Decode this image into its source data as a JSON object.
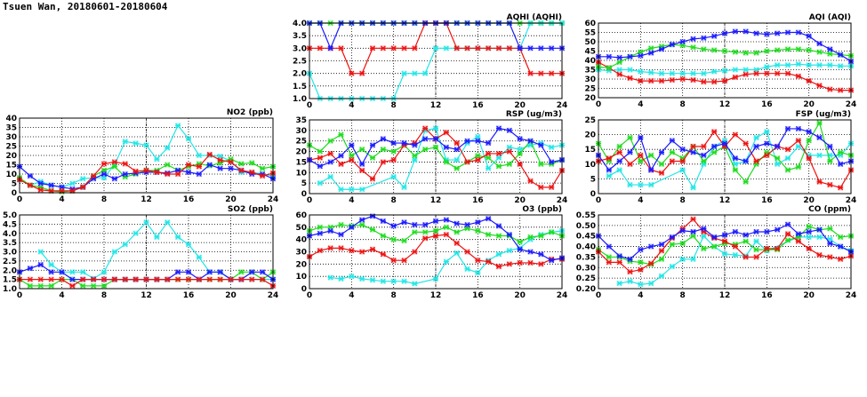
{
  "page_title": "Tsuen Wan, 20180601-20180604",
  "colors": {
    "blue": "#1a1aff",
    "green": "#1edc1e",
    "red": "#ee1111",
    "cyan": "#22e6e6"
  },
  "chart_data": [
    {
      "id": "aqhi",
      "type": "line",
      "title": "AQHI (AQHI)",
      "xlim": [
        0,
        24
      ],
      "ylim": [
        1,
        4
      ],
      "xticks": [
        "0",
        "4",
        "8",
        "12",
        "16",
        "20",
        "24"
      ],
      "yticks": [
        "1.0",
        "1.5",
        "2.0",
        "2.5",
        "3.0",
        "3.5",
        "4.0"
      ],
      "series": [
        {
          "color": "green",
          "values": [
            4,
            4,
            4,
            4,
            4,
            4,
            4,
            4,
            4,
            4,
            4,
            4,
            4,
            4,
            4,
            4,
            4,
            4,
            4,
            4,
            4,
            4,
            4,
            4,
            4
          ]
        },
        {
          "color": "cyan",
          "values": [
            2,
            1,
            1,
            1,
            1,
            1,
            1,
            1,
            1,
            2,
            2,
            2,
            3,
            3,
            3,
            3,
            3,
            3,
            3,
            3,
            3,
            4,
            4,
            4,
            4
          ]
        },
        {
          "color": "red",
          "values": [
            3,
            3,
            3,
            3,
            2,
            2,
            3,
            3,
            3,
            3,
            3,
            4,
            4,
            4,
            3,
            3,
            3,
            3,
            3,
            3,
            3,
            2,
            2,
            2,
            2
          ]
        },
        {
          "color": "blue",
          "values": [
            4,
            4,
            3,
            4,
            4,
            4,
            4,
            4,
            4,
            4,
            4,
            4,
            4,
            4,
            4,
            4,
            4,
            4,
            4,
            4,
            3,
            3,
            3,
            3,
            3
          ]
        }
      ]
    },
    {
      "id": "aqi",
      "type": "line",
      "title": "AQI (AQI)",
      "xlim": [
        0,
        24
      ],
      "ylim": [
        20,
        60
      ],
      "xticks": [
        "0",
        "4",
        "8",
        "12",
        "16",
        "20",
        "24"
      ],
      "yticks": [
        "20",
        "25",
        "30",
        "35",
        "40",
        "45",
        "50",
        "55",
        "60"
      ],
      "series": [
        {
          "color": "cyan",
          "values": [
            35,
            34.5,
            35,
            35,
            34,
            33.5,
            33,
            33,
            33,
            33,
            33,
            34,
            34.5,
            35,
            35,
            35,
            36.5,
            37.5,
            37.5,
            38,
            37.5,
            37.5,
            37.5,
            37,
            37
          ]
        },
        {
          "color": "red",
          "values": [
            39,
            36,
            32.5,
            30.5,
            29,
            29,
            29,
            29.5,
            30,
            29.5,
            28.5,
            28.5,
            29,
            31,
            32.5,
            33,
            33,
            33,
            33,
            31.5,
            29,
            26.5,
            24.5,
            24,
            24
          ]
        },
        {
          "color": "green",
          "values": [
            36.5,
            36,
            39,
            42,
            44.5,
            46.5,
            47.5,
            48.5,
            48,
            47,
            46,
            45.5,
            45,
            44.5,
            44,
            44,
            45,
            45.5,
            46,
            46,
            45.5,
            44.5,
            43.5,
            43,
            42.5
          ]
        },
        {
          "color": "blue",
          "values": [
            42,
            42,
            41.5,
            42,
            42.5,
            44,
            46,
            48.5,
            50,
            51.5,
            52,
            53,
            54.5,
            55.5,
            55.5,
            54.5,
            54,
            54.5,
            55,
            55,
            53,
            49,
            46,
            43,
            39.5
          ]
        }
      ]
    },
    {
      "id": "no2",
      "type": "line",
      "title": "NO2 (ppb)",
      "xlim": [
        0,
        24
      ],
      "ylim": [
        0,
        40
      ],
      "xticks": [
        "0",
        "4",
        "8",
        "12",
        "16",
        "20",
        "24"
      ],
      "yticks": [
        "0",
        "5",
        "10",
        "15",
        "20",
        "25",
        "30",
        "35",
        "40"
      ],
      "series": [
        {
          "color": "cyan",
          "values": [
            7,
            4,
            6,
            4,
            3,
            5,
            7.5,
            8,
            8,
            15,
            27.5,
            26.5,
            25.5,
            18,
            24,
            36,
            29,
            20,
            20,
            19.5,
            17,
            11,
            11,
            10,
            9
          ]
        },
        {
          "color": "green",
          "values": [
            8,
            4,
            3,
            1,
            0.5,
            1,
            3,
            9,
            12,
            14,
            8.5,
            10,
            12,
            12,
            15,
            12,
            14,
            15.5,
            14.5,
            16,
            18,
            15.5,
            16,
            13,
            14
          ]
        },
        {
          "color": "blue",
          "values": [
            14,
            9,
            5,
            4,
            3,
            2,
            3,
            7.5,
            10,
            7.5,
            10,
            10.5,
            11,
            11,
            10.5,
            12,
            11,
            10,
            15,
            13,
            13,
            12,
            10,
            10,
            7.5
          ]
        },
        {
          "color": "red",
          "values": [
            7,
            4,
            1.5,
            1,
            1,
            1,
            3,
            9,
            15.5,
            16.5,
            15.5,
            11.5,
            12,
            11,
            10,
            10,
            15,
            14,
            20.5,
            17.5,
            16.5,
            12,
            11,
            9,
            10.5
          ]
        }
      ]
    },
    {
      "id": "rsp",
      "type": "line",
      "title": "RSP (ug/m3)",
      "xlim": [
        0,
        24
      ],
      "ylim": [
        0,
        35
      ],
      "xticks": [
        "0",
        "4",
        "8",
        "12",
        "16",
        "20",
        "24"
      ],
      "yticks": [
        "0",
        "5",
        "10",
        "15",
        "20",
        "25",
        "30",
        "35"
      ],
      "series": [
        {
          "color": "cyan",
          "values": [
            null,
            5,
            8,
            2,
            2,
            2,
            null,
            null,
            8,
            3,
            16,
            30,
            31,
            16,
            16,
            24,
            27,
            12,
            17,
            22,
            21,
            23,
            24,
            22,
            23
          ]
        },
        {
          "color": "green",
          "values": [
            23,
            20,
            25,
            28,
            18,
            21,
            17,
            21,
            20,
            23,
            18,
            21,
            22,
            15,
            12,
            15,
            18,
            17,
            13,
            14,
            19,
            25,
            14,
            14,
            16
          ]
        },
        {
          "color": "red",
          "values": [
            16,
            17,
            19,
            14,
            16,
            11,
            7,
            15,
            16,
            23,
            24,
            31,
            26,
            29,
            24,
            15,
            16,
            19,
            19,
            20,
            14,
            6,
            3,
            3,
            11
          ]
        },
        {
          "color": "blue",
          "values": [
            16,
            13,
            15,
            18,
            23,
            14,
            23,
            26,
            24,
            24,
            23,
            26,
            26,
            22,
            21,
            25,
            25,
            24,
            31,
            30,
            26,
            25,
            23,
            15,
            16
          ]
        }
      ]
    },
    {
      "id": "fsp",
      "type": "line",
      "title": "FSP (ug/m3)",
      "xlim": [
        0,
        24
      ],
      "ylim": [
        0,
        25
      ],
      "xticks": [
        "0",
        "4",
        "8",
        "12",
        "16",
        "20",
        "24"
      ],
      "yticks": [
        "0",
        "5",
        "10",
        "15",
        "20",
        "25"
      ],
      "series": [
        {
          "color": "cyan",
          "values": [
            null,
            6,
            8,
            3,
            3,
            3,
            null,
            null,
            8,
            2,
            10,
            16,
            18,
            10,
            11,
            19,
            21,
            10,
            12,
            16,
            13,
            13,
            13,
            13,
            17
          ]
        },
        {
          "color": "green",
          "values": [
            17,
            11,
            16,
            19,
            11,
            13,
            10,
            14,
            12,
            16,
            11,
            14,
            16,
            8,
            4,
            10,
            14,
            12,
            8,
            9,
            18,
            24,
            11,
            14,
            13
          ]
        },
        {
          "color": "red",
          "values": [
            11,
            12,
            14,
            10,
            13,
            8,
            7,
            11,
            11,
            16,
            16,
            21,
            16,
            20,
            17,
            11,
            13,
            16,
            15,
            18,
            12,
            4,
            3,
            2,
            8
          ]
        },
        {
          "color": "blue",
          "values": [
            13,
            8,
            11,
            14,
            19,
            8,
            14,
            18,
            15,
            14,
            13,
            16,
            17,
            12,
            11,
            16,
            17,
            16,
            22,
            22,
            21,
            19,
            16,
            10,
            11
          ]
        }
      ]
    },
    {
      "id": "so2",
      "type": "line",
      "title": "SO2 (ppb)",
      "xlim": [
        0,
        24
      ],
      "ylim": [
        1,
        5
      ],
      "xticks": [
        "0",
        "4",
        "8",
        "12",
        "16",
        "20",
        "24"
      ],
      "yticks": [
        "1.0",
        "1.5",
        "2.0",
        "2.5",
        "3.0",
        "3.5",
        "4.0",
        "4.5",
        "5.0"
      ],
      "series": [
        {
          "color": "cyan",
          "values": [
            null,
            null,
            3,
            2.3,
            1.9,
            1.9,
            1.9,
            1.55,
            1.9,
            3,
            3.4,
            4,
            4.6,
            3.8,
            4.6,
            3.8,
            3.4,
            2.7,
            1.9,
            1.9,
            1.5,
            1.5,
            1.5,
            1.5,
            1.5
          ]
        },
        {
          "color": "green",
          "values": [
            1.5,
            1.15,
            1.15,
            1.15,
            1.5,
            1.5,
            1.15,
            1.15,
            1.15,
            1.5,
            1.5,
            1.5,
            1.5,
            1.5,
            1.5,
            1.5,
            1.5,
            1.5,
            1.5,
            1.5,
            1.5,
            1.9,
            1.9,
            1.5,
            1.9
          ]
        },
        {
          "color": "blue",
          "values": [
            1.9,
            2.1,
            2.3,
            1.9,
            1.9,
            1.5,
            1.5,
            1.5,
            1.5,
            1.5,
            1.5,
            1.5,
            1.5,
            1.5,
            1.5,
            1.9,
            1.9,
            1.5,
            1.9,
            1.9,
            1.5,
            1.5,
            1.9,
            1.9,
            1.5
          ]
        },
        {
          "color": "red",
          "values": [
            1.5,
            1.5,
            1.5,
            1.5,
            1.5,
            1.15,
            1.5,
            1.5,
            1.5,
            1.5,
            1.5,
            1.5,
            1.5,
            1.5,
            1.5,
            1.5,
            1.5,
            1.5,
            1.5,
            1.5,
            1.5,
            1.5,
            1.5,
            1.5,
            1.15
          ]
        }
      ]
    },
    {
      "id": "o3",
      "type": "line",
      "title": "O3 (ppb)",
      "xlim": [
        0,
        24
      ],
      "ylim": [
        0,
        60
      ],
      "xticks": [
        "0",
        "4",
        "8",
        "12",
        "16",
        "20",
        "24"
      ],
      "yticks": [
        "0",
        "10",
        "20",
        "30",
        "40",
        "50",
        "60"
      ],
      "series": [
        {
          "color": "cyan",
          "values": [
            null,
            null,
            9,
            8,
            10,
            8,
            7,
            6,
            6,
            6,
            4,
            null,
            8,
            22,
            29,
            16,
            13,
            23,
            28,
            31,
            33,
            40,
            44,
            46,
            47
          ]
        },
        {
          "color": "green",
          "values": [
            47,
            50,
            50,
            52,
            51,
            52,
            48,
            43,
            40,
            39,
            46,
            46,
            47,
            50,
            46,
            49,
            47,
            44,
            43,
            43,
            38,
            42,
            43,
            46,
            43
          ]
        },
        {
          "color": "red",
          "values": [
            26,
            31,
            33,
            33,
            31,
            30,
            32,
            28,
            23,
            23,
            30,
            41,
            43,
            44,
            37,
            30,
            23,
            22,
            18,
            20,
            21,
            21,
            20,
            24,
            24
          ]
        },
        {
          "color": "blue",
          "values": [
            43,
            45,
            47,
            44,
            50,
            56,
            59,
            55,
            51,
            54,
            52,
            52,
            55,
            56,
            53,
            52,
            54,
            57,
            51,
            44,
            32,
            30,
            28,
            23,
            25
          ]
        }
      ]
    },
    {
      "id": "co",
      "type": "line",
      "title": "CO (ppm)",
      "xlim": [
        0,
        24
      ],
      "ylim": [
        0.2,
        0.55
      ],
      "xticks": [
        "0",
        "4",
        "8",
        "12",
        "16",
        "20",
        "24"
      ],
      "yticks": [
        "0.20",
        "0.25",
        "0.30",
        "0.35",
        "0.40",
        "0.45",
        "0.50",
        "0.55"
      ],
      "series": [
        {
          "color": "cyan",
          "values": [
            null,
            null,
            0.225,
            0.235,
            0.22,
            0.225,
            0.26,
            0.305,
            0.34,
            0.34,
            0.45,
            0.4,
            0.365,
            0.36,
            0.355,
            0.425,
            0.38,
            null,
            null,
            0.445,
            0.445,
            0.445,
            0.435,
            0.4,
            0.38
          ]
        },
        {
          "color": "green",
          "values": [
            0.385,
            0.35,
            0.35,
            0.33,
            0.325,
            0.315,
            0.34,
            0.41,
            0.415,
            0.45,
            0.39,
            0.4,
            0.415,
            0.41,
            0.425,
            0.385,
            0.385,
            0.385,
            0.43,
            0.445,
            0.495,
            0.48,
            0.485,
            0.445,
            0.45
          ]
        },
        {
          "color": "red",
          "values": [
            0.375,
            0.325,
            0.325,
            0.28,
            0.29,
            0.32,
            0.38,
            0.44,
            0.485,
            0.53,
            0.47,
            0.44,
            0.425,
            0.4,
            0.35,
            0.35,
            0.39,
            0.39,
            0.46,
            0.425,
            0.39,
            0.36,
            0.35,
            0.34,
            0.355
          ]
        },
        {
          "color": "blue",
          "values": [
            0.45,
            0.4,
            0.355,
            0.34,
            0.385,
            0.4,
            0.41,
            0.445,
            0.475,
            0.47,
            0.485,
            0.445,
            0.455,
            0.47,
            0.455,
            0.47,
            0.47,
            0.48,
            0.505,
            0.46,
            0.47,
            0.48,
            0.415,
            0.4,
            0.375
          ]
        }
      ]
    }
  ]
}
